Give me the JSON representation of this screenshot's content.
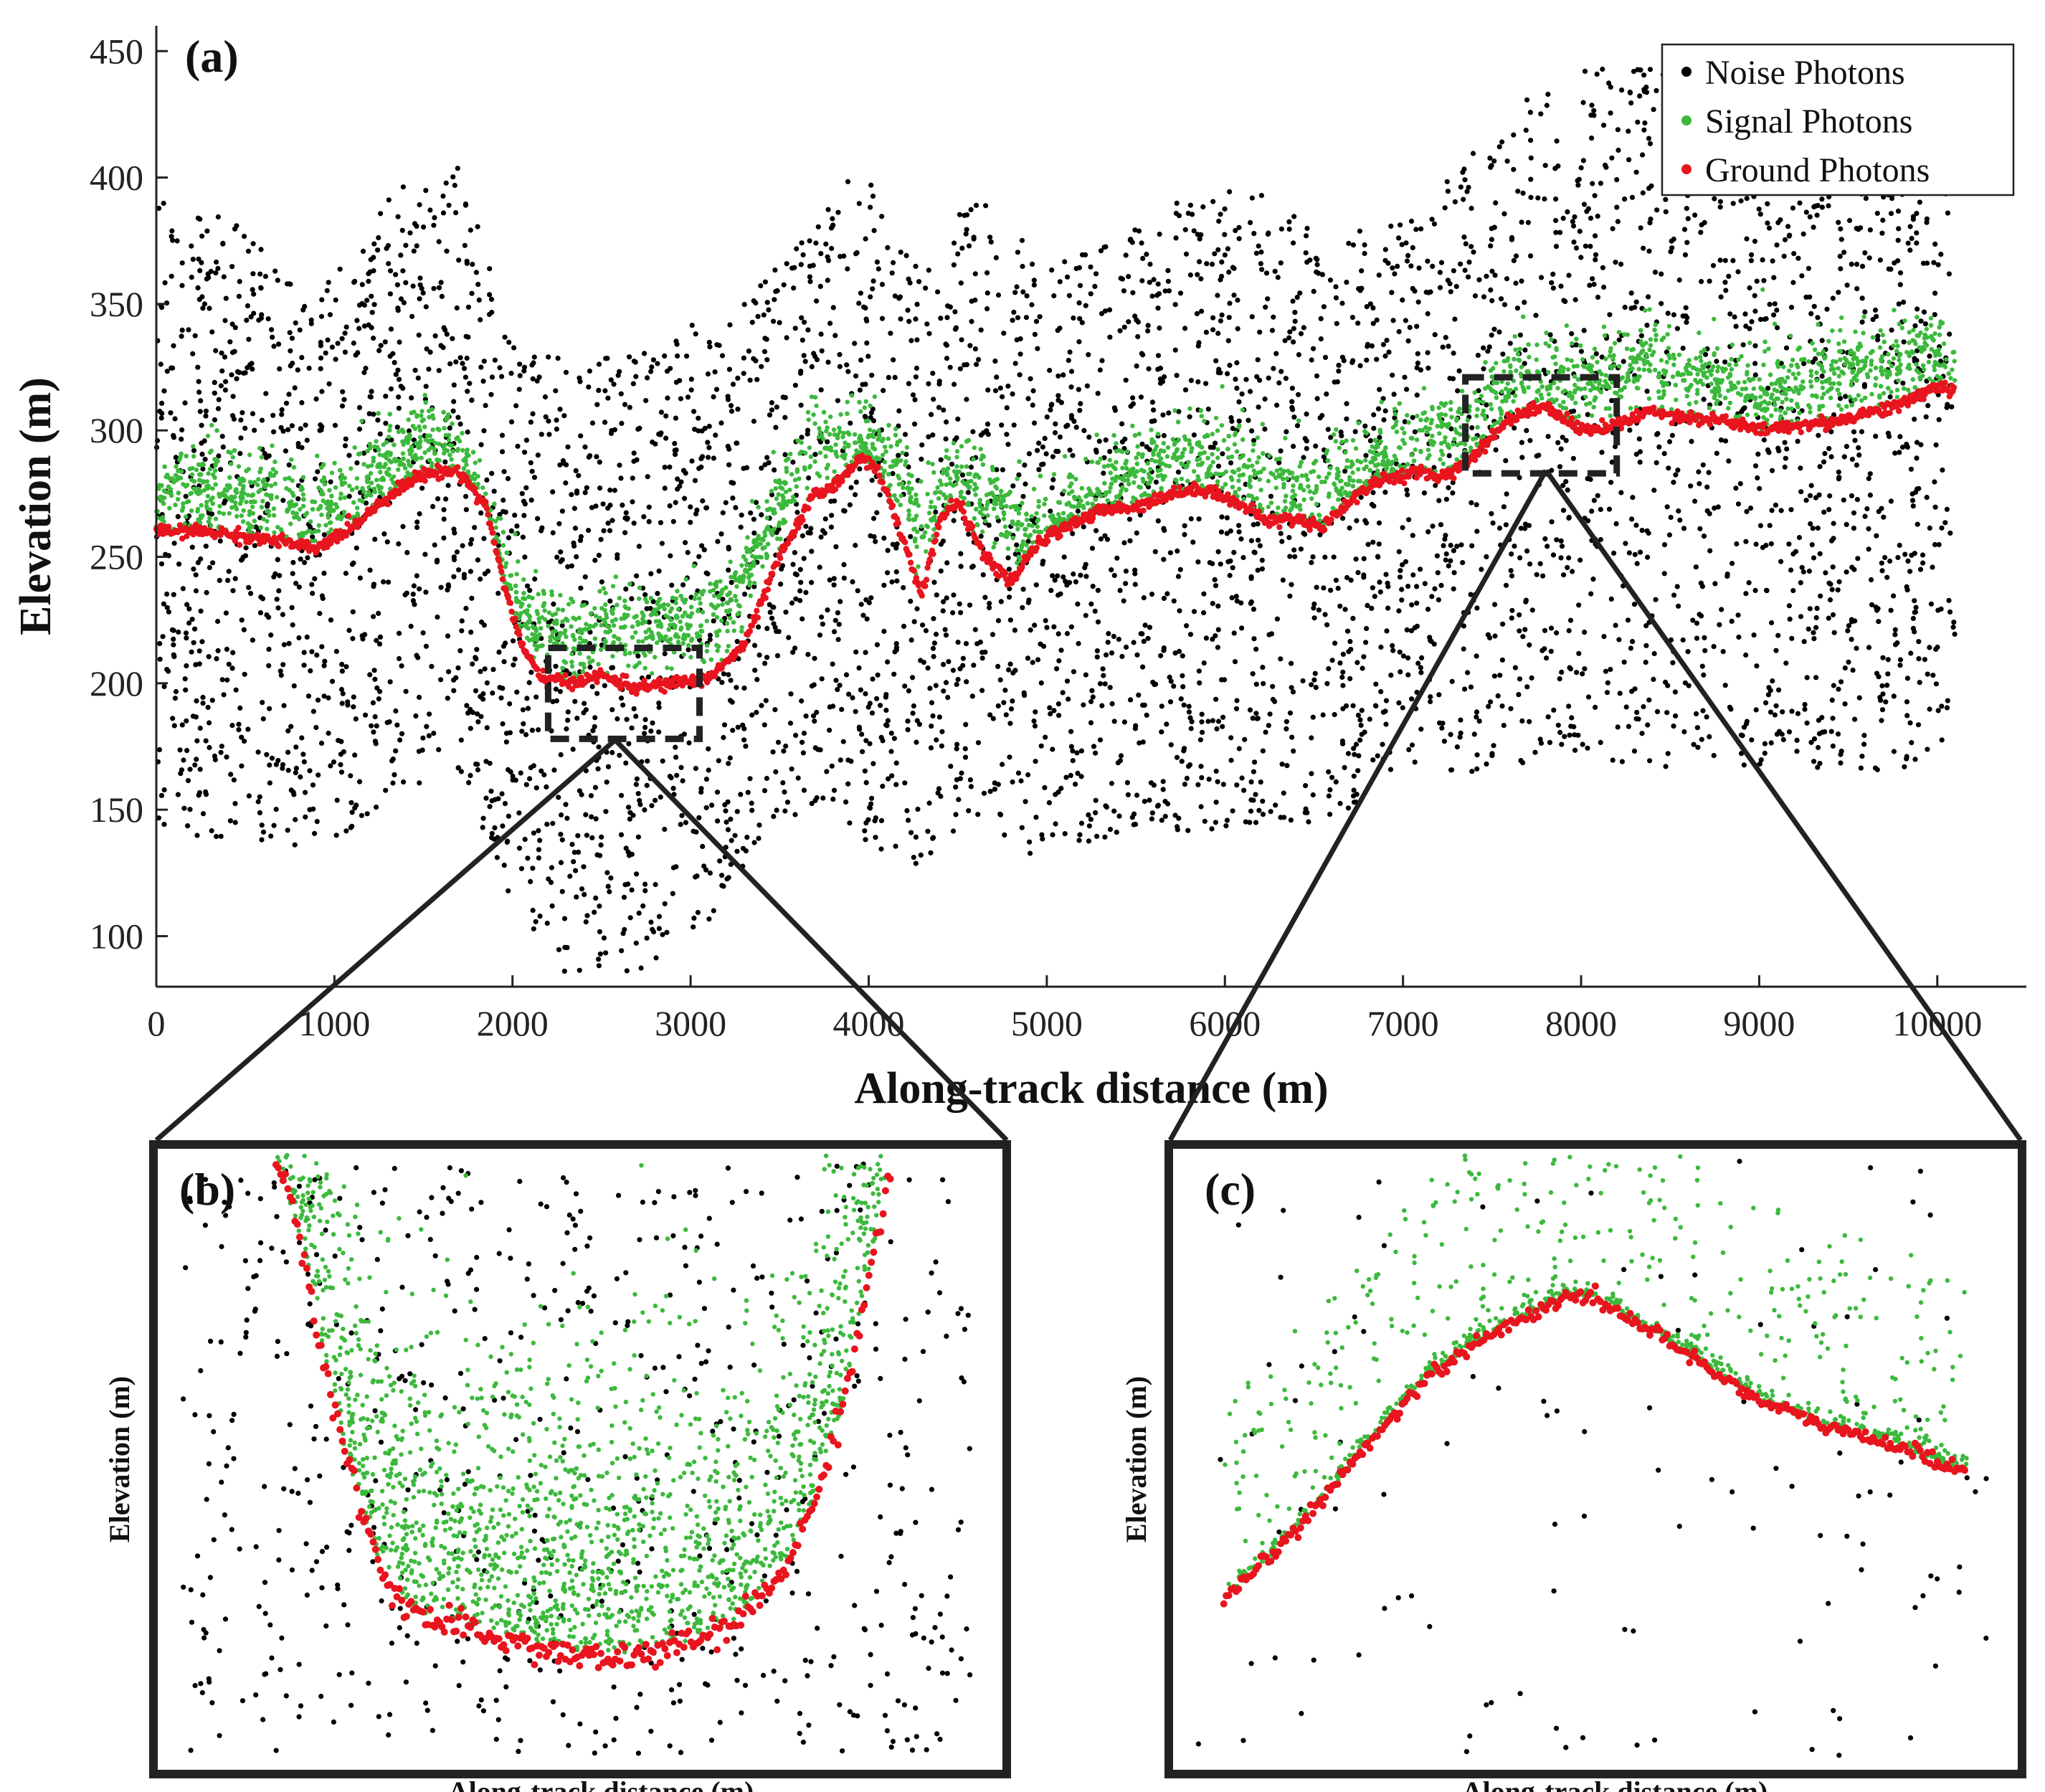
{
  "chart_data": [
    {
      "id": "a",
      "type": "scatter",
      "panel_label": "(a)",
      "xlabel": "Along-track distance (m)",
      "ylabel": "Elevation (m)",
      "xlim": [
        0,
        10500
      ],
      "ylim": [
        80,
        460
      ],
      "xticks": [
        0,
        1000,
        2000,
        3000,
        4000,
        5000,
        6000,
        7000,
        8000,
        9000,
        10000
      ],
      "yticks": [
        100,
        150,
        200,
        250,
        300,
        350,
        400,
        450
      ],
      "legend": {
        "position": "top-right",
        "entries": [
          {
            "name": "Noise Photons",
            "color": "#000000"
          },
          {
            "name": "Signal Photons",
            "color": "#3cb93c"
          },
          {
            "name": "Ground Photons",
            "color": "#e8141e"
          }
        ]
      },
      "series": [
        {
          "name": "Ground Photons",
          "color": "#e8141e",
          "x": [
            0,
            300,
            500,
            700,
            900,
            1100,
            1300,
            1500,
            1700,
            1850,
            1950,
            2050,
            2150,
            2300,
            2500,
            2700,
            2900,
            3100,
            3300,
            3500,
            3700,
            3850,
            3950,
            4050,
            4200,
            4300,
            4400,
            4500,
            4650,
            4800,
            4950,
            5100,
            5300,
            5500,
            5700,
            5900,
            6100,
            6250,
            6400,
            6550,
            6700,
            6850,
            7050,
            7250,
            7400,
            7600,
            7800,
            8000,
            8200,
            8400,
            8600,
            8800,
            9000,
            9200,
            9400,
            9600,
            9800,
            10000,
            10100
          ],
          "y": [
            260,
            260,
            258,
            256,
            253,
            262,
            274,
            283,
            284,
            270,
            240,
            215,
            203,
            200,
            203,
            198,
            200,
            202,
            215,
            250,
            275,
            280,
            290,
            285,
            255,
            235,
            265,
            272,
            250,
            240,
            255,
            262,
            268,
            270,
            275,
            277,
            270,
            264,
            265,
            262,
            272,
            280,
            283,
            282,
            290,
            305,
            310,
            300,
            302,
            308,
            305,
            304,
            300,
            302,
            303,
            307,
            310,
            318,
            315
          ]
        },
        {
          "name": "Signal Photons",
          "color": "#3cb93c",
          "x": [
            0,
            300,
            600,
            900,
            1200,
            1500,
            1700,
            1850,
            1950,
            2100,
            2300,
            2600,
            2900,
            3200,
            3500,
            3700,
            3900,
            4100,
            4300,
            4500,
            4700,
            4900,
            5100,
            5400,
            5700,
            6000,
            6300,
            6600,
            6900,
            7200,
            7400,
            7600,
            7800,
            8000,
            8200,
            8400,
            8600,
            8900,
            9200,
            9500,
            9800,
            10000,
            10100
          ],
          "y": [
            272,
            276,
            273,
            268,
            280,
            298,
            293,
            270,
            245,
            222,
            220,
            221,
            222,
            228,
            268,
            291,
            295,
            290,
            262,
            282,
            272,
            255,
            268,
            278,
            287,
            286,
            278,
            277,
            287,
            298,
            300,
            322,
            322,
            318,
            323,
            327,
            320,
            318,
            318,
            322,
            325,
            332,
            330
          ],
          "band_halfwidth_m": 11
        },
        {
          "name": "Noise Photons",
          "color": "#000000",
          "x": [
            0,
            500,
            900,
            1300,
            1700,
            2000,
            2300,
            2700,
            3100,
            3500,
            3900,
            4300,
            4600,
            5000,
            5400,
            5800,
            6200,
            6600,
            7000,
            7400,
            7800,
            8200,
            8600,
            9000,
            9400,
            9800,
            10100
          ],
          "y_top": [
            395,
            380,
            355,
            395,
            405,
            335,
            330,
            330,
            345,
            365,
            410,
            365,
            395,
            365,
            375,
            395,
            395,
            375,
            385,
            410,
            440,
            445,
            445,
            440,
            440,
            440,
            445
          ],
          "y_bottom": [
            140,
            138,
            135,
            150,
            165,
            110,
            85,
            85,
            105,
            150,
            140,
            125,
            140,
            130,
            140,
            140,
            145,
            145,
            165,
            165,
            170,
            165,
            168,
            165,
            165,
            165,
            180
          ]
        }
      ],
      "zoom_boxes": [
        {
          "target": "(b)",
          "x_range": [
            2200,
            3050
          ],
          "y_range": [
            178,
            214
          ]
        },
        {
          "target": "(c)",
          "x_range": [
            7350,
            8200
          ],
          "y_range": [
            283,
            321
          ]
        }
      ]
    },
    {
      "id": "b",
      "type": "scatter",
      "panel_label": "(b)",
      "xlabel": "Along-track distance (m)",
      "ylabel": "Elevation (m)",
      "description": "Zoom of valley floor: U-shaped ground profile with dense signal photons above it and sparse noise scattered throughout",
      "ground_profile_norm": {
        "x": [
          0.14,
          0.17,
          0.19,
          0.22,
          0.25,
          0.27,
          0.32,
          0.38,
          0.44,
          0.5,
          0.56,
          0.62,
          0.68,
          0.73,
          0.77,
          0.81,
          0.84,
          0.87
        ],
        "y": [
          0.98,
          0.85,
          0.7,
          0.52,
          0.38,
          0.3,
          0.24,
          0.22,
          0.2,
          0.18,
          0.18,
          0.2,
          0.23,
          0.3,
          0.4,
          0.58,
          0.78,
          0.98
        ]
      }
    },
    {
      "id": "c",
      "type": "scatter",
      "panel_label": "(c)",
      "xlabel": "Along-track distance (m)",
      "ylabel": "Elevation (m)",
      "description": "Zoom of ridge: ground photons rise to a crest then decline gently, signal photons scattered above",
      "ground_profile_norm": {
        "x": [
          0.06,
          0.12,
          0.18,
          0.24,
          0.3,
          0.36,
          0.42,
          0.46,
          0.5,
          0.55,
          0.62,
          0.7,
          0.78,
          0.86,
          0.94
        ],
        "y": [
          0.27,
          0.35,
          0.44,
          0.54,
          0.63,
          0.69,
          0.73,
          0.76,
          0.76,
          0.72,
          0.66,
          0.59,
          0.55,
          0.52,
          0.48
        ]
      }
    }
  ]
}
